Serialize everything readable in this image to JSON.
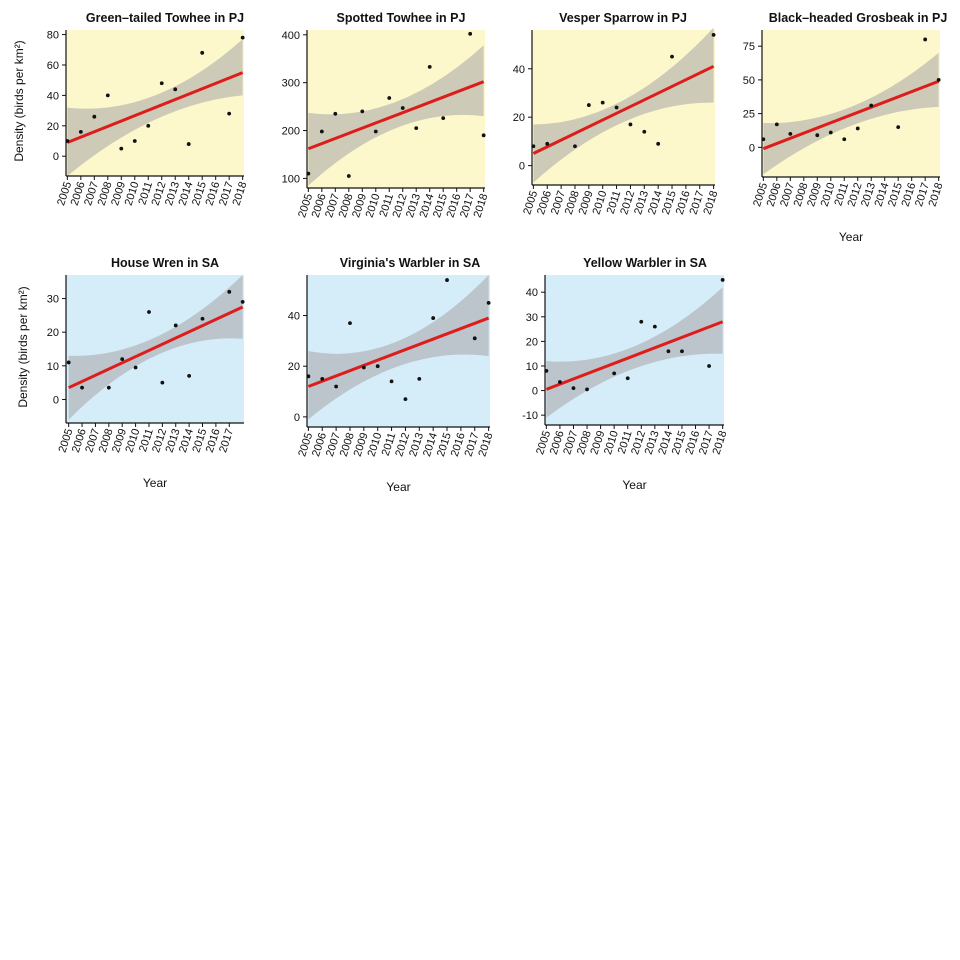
{
  "figure": {
    "ylabel": "Density (birds per km²)",
    "xlabel": "Year"
  },
  "colors": {
    "pj_panel": "#fdf8cc",
    "sa_panel": "#d5ecf9",
    "fit_line": "#dd1c1c",
    "ci_band": "#a6a6a6",
    "points": "#111111"
  },
  "chart_data": [
    {
      "type": "scatter",
      "title": "Green–tailed Towhee in PJ",
      "habitat": "PJ",
      "x_ticks": [
        2005,
        2006,
        2007,
        2008,
        2009,
        2010,
        2011,
        2012,
        2013,
        2014,
        2015,
        2016,
        2017,
        2018
      ],
      "y_ticks": [
        0,
        20,
        40,
        60,
        80
      ],
      "xlim": [
        2004.9,
        2018.1
      ],
      "ylim": [
        -13,
        83
      ],
      "points": [
        [
          2005,
          10
        ],
        [
          2006,
          16
        ],
        [
          2007,
          26
        ],
        [
          2008,
          40
        ],
        [
          2009,
          5
        ],
        [
          2010,
          10
        ],
        [
          2011,
          20
        ],
        [
          2012,
          48
        ],
        [
          2013,
          44
        ],
        [
          2014,
          8
        ],
        [
          2015,
          68
        ],
        [
          2017,
          28
        ],
        [
          2018,
          78
        ]
      ],
      "fit": [
        [
          2005,
          9
        ],
        [
          2018,
          55
        ]
      ],
      "ci": [
        [
          2005,
          -13,
          32
        ],
        [
          2011.5,
          24,
          40
        ],
        [
          2018,
          40,
          77
        ]
      ],
      "show_ylabel": true,
      "show_xlabel": false
    },
    {
      "type": "scatter",
      "title": "Spotted Towhee in PJ",
      "habitat": "PJ",
      "x_ticks": [
        2005,
        2006,
        2007,
        2008,
        2009,
        2010,
        2011,
        2012,
        2013,
        2014,
        2015,
        2016,
        2017,
        2018
      ],
      "y_ticks": [
        100,
        200,
        300,
        400
      ],
      "xlim": [
        2004.9,
        2018.1
      ],
      "ylim": [
        80,
        410
      ],
      "points": [
        [
          2005,
          110
        ],
        [
          2006,
          198
        ],
        [
          2007,
          235
        ],
        [
          2008,
          105
        ],
        [
          2009,
          240
        ],
        [
          2010,
          198
        ],
        [
          2011,
          268
        ],
        [
          2012,
          247
        ],
        [
          2013,
          205
        ],
        [
          2014,
          333
        ],
        [
          2015,
          226
        ],
        [
          2017,
          402
        ],
        [
          2018,
          190
        ]
      ],
      "fit": [
        [
          2005,
          162
        ],
        [
          2018,
          302
        ]
      ],
      "ci": [
        [
          2005,
          85,
          237
        ],
        [
          2011.5,
          205,
          260
        ],
        [
          2018,
          230,
          378
        ]
      ],
      "show_ylabel": false,
      "show_xlabel": false
    },
    {
      "type": "scatter",
      "title": "Vesper Sparrow in PJ",
      "habitat": "PJ",
      "x_ticks": [
        2005,
        2006,
        2007,
        2008,
        2009,
        2010,
        2011,
        2012,
        2013,
        2014,
        2015,
        2016,
        2017,
        2018
      ],
      "y_ticks": [
        0,
        20,
        40
      ],
      "xlim": [
        2004.9,
        2018.1
      ],
      "ylim": [
        -8,
        56
      ],
      "points": [
        [
          2005,
          8
        ],
        [
          2006,
          9
        ],
        [
          2008,
          8
        ],
        [
          2009,
          25
        ],
        [
          2010,
          26
        ],
        [
          2011,
          24
        ],
        [
          2012,
          17
        ],
        [
          2013,
          14
        ],
        [
          2014,
          9
        ],
        [
          2015,
          45
        ],
        [
          2018,
          54
        ]
      ],
      "fit": [
        [
          2005,
          5
        ],
        [
          2018,
          41
        ]
      ],
      "ci": [
        [
          2005,
          -7,
          17
        ],
        [
          2011.5,
          18,
          27
        ],
        [
          2018,
          26,
          57
        ]
      ],
      "show_ylabel": false,
      "show_xlabel": false
    },
    {
      "type": "scatter",
      "title": "Black–headed Grosbeak in PJ",
      "habitat": "PJ",
      "x_ticks": [
        2005,
        2006,
        2007,
        2008,
        2009,
        2010,
        2011,
        2012,
        2013,
        2014,
        2015,
        2016,
        2017,
        2018
      ],
      "y_ticks": [
        0,
        25,
        50,
        75
      ],
      "xlim": [
        2004.9,
        2018.1
      ],
      "ylim": [
        -22,
        87
      ],
      "points": [
        [
          2005,
          6
        ],
        [
          2006,
          17
        ],
        [
          2007,
          10
        ],
        [
          2009,
          9
        ],
        [
          2010,
          11
        ],
        [
          2011,
          6
        ],
        [
          2012,
          14
        ],
        [
          2013,
          31
        ],
        [
          2015,
          15
        ],
        [
          2017,
          80
        ],
        [
          2018,
          50
        ]
      ],
      "fit": [
        [
          2005,
          -1
        ],
        [
          2018,
          49
        ]
      ],
      "ci": [
        [
          2005,
          -20,
          18
        ],
        [
          2011.5,
          16,
          30
        ],
        [
          2018,
          30,
          70
        ]
      ],
      "show_ylabel": false,
      "show_xlabel": true
    },
    {
      "type": "scatter",
      "title": "House Wren in SA",
      "habitat": "SA",
      "x_ticks": [
        2005,
        2006,
        2007,
        2008,
        2009,
        2010,
        2011,
        2012,
        2013,
        2014,
        2015,
        2016,
        2017
      ],
      "y_ticks": [
        0,
        10,
        20,
        30
      ],
      "xlim": [
        2004.8,
        2018.1
      ],
      "ylim": [
        -7,
        37
      ],
      "points": [
        [
          2005,
          11
        ],
        [
          2006,
          3.5
        ],
        [
          2008,
          3.5
        ],
        [
          2009,
          12
        ],
        [
          2010,
          9.5
        ],
        [
          2011,
          26
        ],
        [
          2012,
          5
        ],
        [
          2013,
          22
        ],
        [
          2014,
          7
        ],
        [
          2015,
          24
        ],
        [
          2017,
          32
        ],
        [
          2018,
          29
        ]
      ],
      "fit": [
        [
          2005,
          3.5
        ],
        [
          2018,
          27.5
        ]
      ],
      "ci": [
        [
          2005,
          -6,
          13
        ],
        [
          2011.5,
          13,
          18.5
        ],
        [
          2018,
          18,
          37
        ]
      ],
      "show_ylabel": true,
      "show_xlabel": true
    },
    {
      "type": "scatter",
      "title": "Virginia's Warbler in SA",
      "habitat": "SA",
      "x_ticks": [
        2005,
        2006,
        2007,
        2008,
        2009,
        2010,
        2011,
        2012,
        2013,
        2014,
        2015,
        2016,
        2017,
        2018
      ],
      "y_ticks": [
        0,
        20,
        40
      ],
      "xlim": [
        2004.9,
        2018.1
      ],
      "ylim": [
        -4,
        56
      ],
      "points": [
        [
          2005,
          16
        ],
        [
          2006,
          15
        ],
        [
          2007,
          12
        ],
        [
          2008,
          37
        ],
        [
          2009,
          19.5
        ],
        [
          2010,
          20
        ],
        [
          2011,
          14
        ],
        [
          2012,
          7
        ],
        [
          2013,
          15
        ],
        [
          2014,
          39
        ],
        [
          2015,
          54
        ],
        [
          2017,
          31
        ],
        [
          2018,
          45
        ]
      ],
      "fit": [
        [
          2005,
          12
        ],
        [
          2018,
          39
        ]
      ],
      "ci": [
        [
          2005,
          -1,
          26
        ],
        [
          2011.5,
          20,
          30
        ],
        [
          2018,
          24,
          56
        ]
      ],
      "show_ylabel": false,
      "show_xlabel": true
    },
    {
      "type": "scatter",
      "title": "Yellow Warbler in SA",
      "habitat": "SA",
      "x_ticks": [
        2005,
        2006,
        2007,
        2008,
        2009,
        2010,
        2011,
        2012,
        2013,
        2014,
        2015,
        2016,
        2017,
        2018
      ],
      "y_ticks": [
        -10,
        0,
        10,
        20,
        30,
        40
      ],
      "xlim": [
        2004.9,
        2018.1
      ],
      "ylim": [
        -14,
        47
      ],
      "points": [
        [
          2005,
          8
        ],
        [
          2006,
          3.5
        ],
        [
          2007,
          1
        ],
        [
          2008,
          0.5
        ],
        [
          2010,
          7
        ],
        [
          2011,
          5
        ],
        [
          2012,
          28
        ],
        [
          2013,
          26
        ],
        [
          2014,
          16
        ],
        [
          2015,
          16
        ],
        [
          2017,
          10
        ],
        [
          2018,
          45
        ]
      ],
      "fit": [
        [
          2005,
          0.5
        ],
        [
          2018,
          28
        ]
      ],
      "ci": [
        [
          2005,
          -11,
          12
        ],
        [
          2011.5,
          9,
          18
        ],
        [
          2018,
          15,
          42
        ]
      ],
      "show_ylabel": false,
      "show_xlabel": true
    }
  ]
}
